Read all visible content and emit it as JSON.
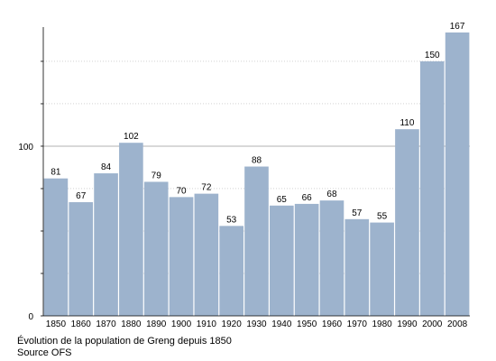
{
  "chart_data": {
    "type": "bar",
    "categories": [
      "1850",
      "1860",
      "1870",
      "1880",
      "1890",
      "1900",
      "1910",
      "1920",
      "1930",
      "1940",
      "1950",
      "1960",
      "1970",
      "1980",
      "1990",
      "2000",
      "2008"
    ],
    "values": [
      81,
      67,
      84,
      102,
      79,
      70,
      72,
      53,
      88,
      65,
      66,
      68,
      57,
      55,
      110,
      150,
      167
    ],
    "yticks": [
      0,
      100
    ],
    "ylim": [
      0,
      167
    ],
    "grid": true,
    "bar_color": "#9db3cd",
    "gridline_color": "#999999"
  },
  "caption": {
    "line1": "Évolution de la population de Greng depuis 1850",
    "line2": "Source OFS"
  }
}
